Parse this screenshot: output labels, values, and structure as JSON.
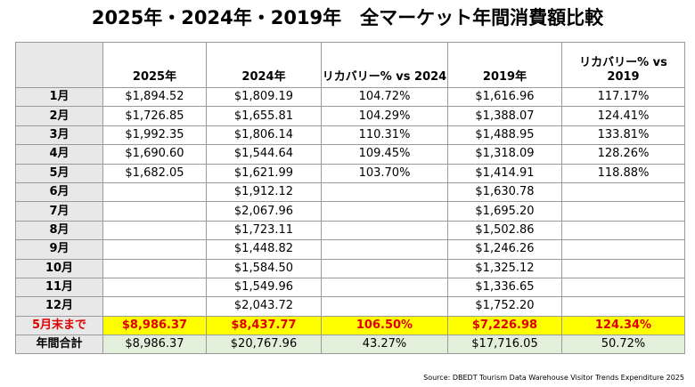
{
  "title": "2025年・2024年・2019年　全マーケット年間消費額比較",
  "headers": [
    "",
    "2025年",
    "2024年",
    "リカバリー% vs 2024",
    "2019年",
    "リカバリー% vs 2019"
  ],
  "rows": [
    [
      "1月",
      "$1,894.52",
      "$1,809.19",
      "104.72%",
      "$1,616.96",
      "117.17%"
    ],
    [
      "2月",
      "$1,726.85",
      "$1,655.81",
      "104.29%",
      "$1,388.07",
      "124.41%"
    ],
    [
      "3月",
      "$1,992.35",
      "$1,806.14",
      "110.31%",
      "$1,488.95",
      "133.81%"
    ],
    [
      "4月",
      "$1,690.60",
      "$1,544.64",
      "109.45%",
      "$1,318.09",
      "128.26%"
    ],
    [
      "5月",
      "$1,682.05",
      "$1,621.99",
      "103.70%",
      "$1,414.91",
      "118.88%"
    ],
    [
      "6月",
      "",
      "$1,912.12",
      "",
      "$1,630.78",
      ""
    ],
    [
      "7月",
      "",
      "$2,067.96",
      "",
      "$1,695.20",
      ""
    ],
    [
      "8月",
      "",
      "$1,723.11",
      "",
      "$1,502.86",
      ""
    ],
    [
      "9月",
      "",
      "$1,448.82",
      "",
      "$1,246.26",
      ""
    ],
    [
      "10月",
      "",
      "$1,584.50",
      "",
      "$1,325.12",
      ""
    ],
    [
      "11月",
      "",
      "$1,549.96",
      "",
      "$1,336.65",
      ""
    ],
    [
      "12月",
      "",
      "$2,043.72",
      "",
      "$1,752.20",
      ""
    ]
  ],
  "ytd": [
    "5月末まで",
    "$8,986.37",
    "$8,437.77",
    "106.50%",
    "$7,226.98",
    "124.34%"
  ],
  "total": [
    "年間合計",
    "$8,986.37",
    "$20,767.96",
    "43.27%",
    "$17,716.05",
    "50.72%"
  ],
  "source": "Source: DBEDT Tourism Data Warehouse Visitor Trends Expenditure 2025",
  "colors": {
    "ytd_bg": "#ffff00",
    "ytd_text": "#e00000",
    "total_bg": "#e2efda",
    "month_bg": "#e8e8e8"
  }
}
